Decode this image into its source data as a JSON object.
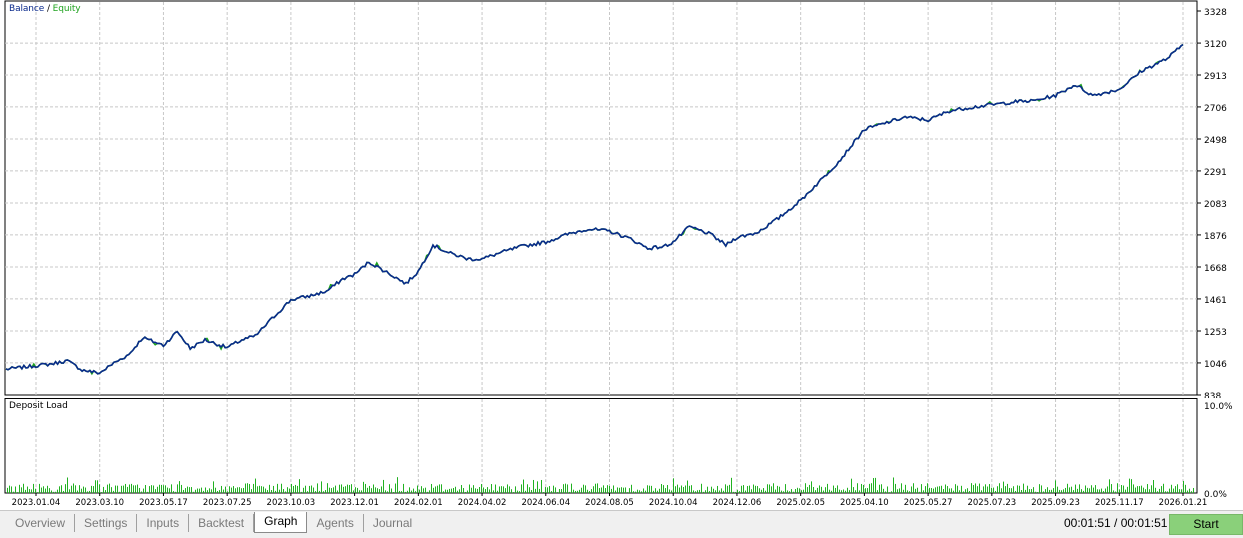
{
  "legend": {
    "balance": "Balance",
    "separator": " / ",
    "equity": "Equity"
  },
  "colors": {
    "balance": "#0a2a8c",
    "equity": "#1fa31f",
    "deposit_bars": "#22b222",
    "grid": "#c8c8c8",
    "start_button": "#8ad07a"
  },
  "chart_data": [
    {
      "type": "line",
      "series": [
        {
          "name": "Balance",
          "color": "#0a2a8c"
        },
        {
          "name": "Equity",
          "color": "#1fa31f"
        }
      ],
      "y_ticks": [
        "3328",
        "3120",
        "2913",
        "2706",
        "2498",
        "2291",
        "2083",
        "1876",
        "1668",
        "1461",
        "1253",
        "1046",
        "838"
      ],
      "ylim": [
        838,
        3328
      ],
      "x_ticks": [
        "2023.01.04",
        "2023.03.10",
        "2023.05.17",
        "2023.07.25",
        "2023.10.03",
        "2023.12.01",
        "2024.02.01",
        "2024.04.02",
        "2024.06.04",
        "2024.08.05",
        "2024.10.04",
        "2024.12.06",
        "2025.02.05",
        "2025.04.10",
        "2025.05.27",
        "2025.07.23",
        "2025.09.23",
        "2025.11.17",
        "2026.01.21"
      ],
      "points": [
        [
          "2023.01.04",
          1005
        ],
        [
          "2023.01.20",
          1040
        ],
        [
          "2023.02.05",
          1060
        ],
        [
          "2023.02.20",
          1000
        ],
        [
          "2023.03.10",
          980
        ],
        [
          "2023.03.25",
          1045
        ],
        [
          "2023.04.10",
          1100
        ],
        [
          "2023.04.25",
          1210
        ],
        [
          "2023.05.17",
          1160
        ],
        [
          "2023.06.01",
          1250
        ],
        [
          "2023.06.15",
          1140
        ],
        [
          "2023.07.01",
          1195
        ],
        [
          "2023.07.25",
          1145
        ],
        [
          "2023.08.10",
          1195
        ],
        [
          "2023.08.25",
          1220
        ],
        [
          "2023.09.10",
          1320
        ],
        [
          "2023.10.03",
          1455
        ],
        [
          "2023.10.20",
          1480
        ],
        [
          "2023.11.05",
          1510
        ],
        [
          "2023.11.20",
          1590
        ],
        [
          "2023.12.01",
          1620
        ],
        [
          "2023.12.15",
          1700
        ],
        [
          "2024.01.05",
          1620
        ],
        [
          "2024.01.20",
          1560
        ],
        [
          "2024.02.01",
          1640
        ],
        [
          "2024.02.15",
          1810
        ],
        [
          "2024.03.01",
          1760
        ],
        [
          "2024.03.20",
          1720
        ],
        [
          "2024.04.02",
          1720
        ],
        [
          "2024.04.20",
          1760
        ],
        [
          "2024.05.10",
          1800
        ],
        [
          "2024.06.04",
          1830
        ],
        [
          "2024.06.25",
          1880
        ],
        [
          "2024.07.15",
          1915
        ],
        [
          "2024.08.05",
          1900
        ],
        [
          "2024.08.25",
          1850
        ],
        [
          "2024.09.10",
          1790
        ],
        [
          "2024.09.25",
          1800
        ],
        [
          "2024.10.04",
          1830
        ],
        [
          "2024.10.20",
          1930
        ],
        [
          "2024.11.10",
          1880
        ],
        [
          "2024.11.25",
          1810
        ],
        [
          "2024.12.06",
          1860
        ],
        [
          "2024.12.25",
          1890
        ],
        [
          "2025.01.15",
          1985
        ],
        [
          "2025.02.05",
          2100
        ],
        [
          "2025.02.25",
          2230
        ],
        [
          "2025.03.15",
          2350
        ],
        [
          "2025.04.10",
          2560
        ],
        [
          "2025.04.25",
          2600
        ],
        [
          "2025.05.10",
          2640
        ],
        [
          "2025.05.27",
          2620
        ],
        [
          "2025.06.15",
          2680
        ],
        [
          "2025.07.01",
          2700
        ],
        [
          "2025.07.23",
          2720
        ],
        [
          "2025.08.15",
          2740
        ],
        [
          "2025.09.01",
          2745
        ],
        [
          "2025.09.23",
          2780
        ],
        [
          "2025.10.10",
          2850
        ],
        [
          "2025.10.25",
          2780
        ],
        [
          "2025.11.17",
          2820
        ],
        [
          "2025.12.10",
          2940
        ],
        [
          "2026.01.05",
          3020
        ],
        [
          "2026.01.21",
          3110
        ]
      ]
    },
    {
      "type": "bar",
      "title": "Deposit Load",
      "y_ticks": [
        "10.0%",
        "0.0%"
      ],
      "ylim": [
        0,
        10
      ],
      "series": [
        {
          "name": "Deposit Load",
          "color": "#22b222"
        }
      ],
      "typical_range": [
        0.1,
        1.8
      ]
    }
  ],
  "deposit_title": "Deposit Load",
  "tabs": [
    {
      "id": "overview",
      "label": "Overview",
      "active": false
    },
    {
      "id": "settings",
      "label": "Settings",
      "active": false
    },
    {
      "id": "inputs",
      "label": "Inputs",
      "active": false
    },
    {
      "id": "backtest",
      "label": "Backtest",
      "active": false
    },
    {
      "id": "graph",
      "label": "Graph",
      "active": true
    },
    {
      "id": "agents",
      "label": "Agents",
      "active": false
    },
    {
      "id": "journal",
      "label": "Journal",
      "active": false
    }
  ],
  "timer": "00:01:51 / 00:01:51",
  "start_label": "Start"
}
